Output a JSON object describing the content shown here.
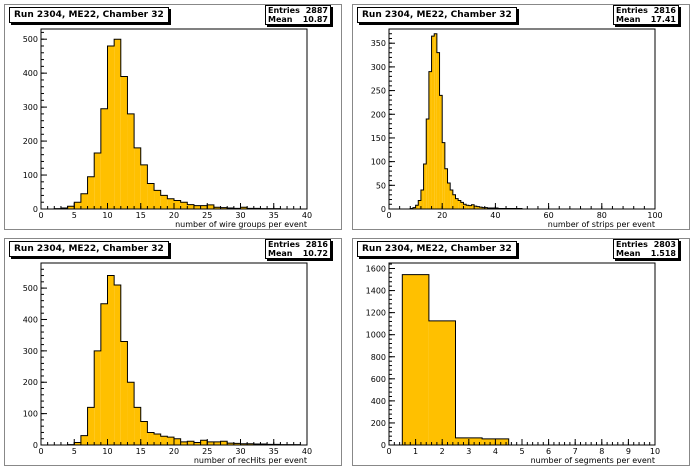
{
  "colors": {
    "fill": "#ffc000",
    "line": "#000000"
  },
  "chart_data": [
    {
      "type": "bar",
      "title": "Run 2304, ME22, Chamber 32",
      "xlabel": "number of wire groups per event",
      "ylabel": "",
      "xlim": [
        0,
        40
      ],
      "ylim": [
        0,
        530
      ],
      "bin_width": 1,
      "x_ticks": [
        "0",
        "5",
        "10",
        "15",
        "20",
        "25",
        "30",
        "35",
        "40"
      ],
      "y_ticks": [
        "0",
        "100",
        "200",
        "300",
        "400",
        "500"
      ],
      "bins_start": 0,
      "values": [
        0,
        0,
        1,
        3,
        8,
        20,
        45,
        95,
        165,
        295,
        480,
        500,
        390,
        280,
        180,
        130,
        75,
        55,
        40,
        30,
        25,
        20,
        13,
        10,
        10,
        12,
        5,
        4,
        3,
        2,
        5,
        2,
        2,
        1,
        1,
        1,
        0,
        0,
        0,
        0
      ],
      "stats": {
        "entries_label": "Entries",
        "entries": "2887",
        "mean_label": "Mean",
        "mean": "10.87"
      }
    },
    {
      "type": "bar",
      "title": "Run 2304, ME22, Chamber 32",
      "xlabel": "number of strips per event",
      "ylabel": "",
      "xlim": [
        0,
        100
      ],
      "ylim": [
        0,
        380
      ],
      "bin_width": 1,
      "x_ticks": [
        "0",
        "20",
        "40",
        "60",
        "80",
        "100"
      ],
      "y_ticks": [
        "0",
        "50",
        "100",
        "150",
        "200",
        "250",
        "300",
        "350"
      ],
      "bins_start": 0,
      "values": [
        0,
        0,
        0,
        0,
        0,
        0,
        0,
        0,
        1,
        3,
        8,
        18,
        40,
        95,
        190,
        290,
        365,
        370,
        330,
        240,
        140,
        85,
        55,
        40,
        30,
        22,
        18,
        14,
        10,
        8,
        7,
        9,
        6,
        5,
        4,
        3,
        3,
        2,
        2,
        2,
        2,
        1,
        1,
        1,
        1,
        1,
        1,
        1,
        1,
        1,
        0,
        0,
        0,
        0,
        0,
        0,
        0,
        0,
        0,
        0,
        0,
        0,
        0,
        0,
        0,
        0,
        0,
        0,
        0,
        0,
        0,
        0,
        0,
        0,
        0,
        0,
        0,
        0,
        0,
        0,
        0,
        0,
        0,
        0,
        0,
        0,
        0,
        0,
        0,
        0,
        0,
        0,
        0,
        0,
        0,
        0,
        0,
        0,
        0,
        0
      ],
      "stats": {
        "entries_label": "Entries",
        "entries": "2816",
        "mean_label": "Mean",
        "mean": "17.41"
      }
    },
    {
      "type": "bar",
      "title": "Run 2304, ME22, Chamber 32",
      "xlabel": "number of recHits per event",
      "ylabel": "",
      "xlim": [
        0,
        40
      ],
      "ylim": [
        0,
        580
      ],
      "bin_width": 1,
      "x_ticks": [
        "0",
        "5",
        "10",
        "15",
        "20",
        "25",
        "30",
        "35",
        "40"
      ],
      "y_ticks": [
        "0",
        "100",
        "200",
        "300",
        "400",
        "500"
      ],
      "bins_start": 0,
      "values": [
        0,
        0,
        0,
        0,
        1,
        8,
        30,
        120,
        300,
        450,
        540,
        510,
        330,
        200,
        120,
        75,
        40,
        35,
        28,
        25,
        20,
        10,
        12,
        8,
        15,
        10,
        10,
        12,
        6,
        5,
        4,
        4,
        3,
        3,
        2,
        2,
        1,
        1,
        1,
        0
      ],
      "stats": {
        "entries_label": "Entries",
        "entries": "2816",
        "mean_label": "Mean",
        "mean": "10.72"
      }
    },
    {
      "type": "bar",
      "title": "Run 2304, ME22, Chamber 32",
      "xlabel": "number of segments per event",
      "ylabel": "",
      "xlim": [
        0,
        10
      ],
      "ylim": [
        0,
        1650
      ],
      "bin_width": 1,
      "x_ticks": [
        "0",
        "1",
        "2",
        "3",
        "4",
        "5",
        "6",
        "7",
        "8",
        "9",
        "10"
      ],
      "y_ticks": [
        "0",
        "200",
        "400",
        "600",
        "800",
        "1000",
        "1200",
        "1400",
        "1600"
      ],
      "bins_start": 0.5,
      "values": [
        1545,
        1125,
        65,
        55
      ],
      "stats": {
        "entries_label": "Entries",
        "entries": "2803",
        "mean_label": "Mean",
        "mean": "1.518"
      }
    }
  ]
}
